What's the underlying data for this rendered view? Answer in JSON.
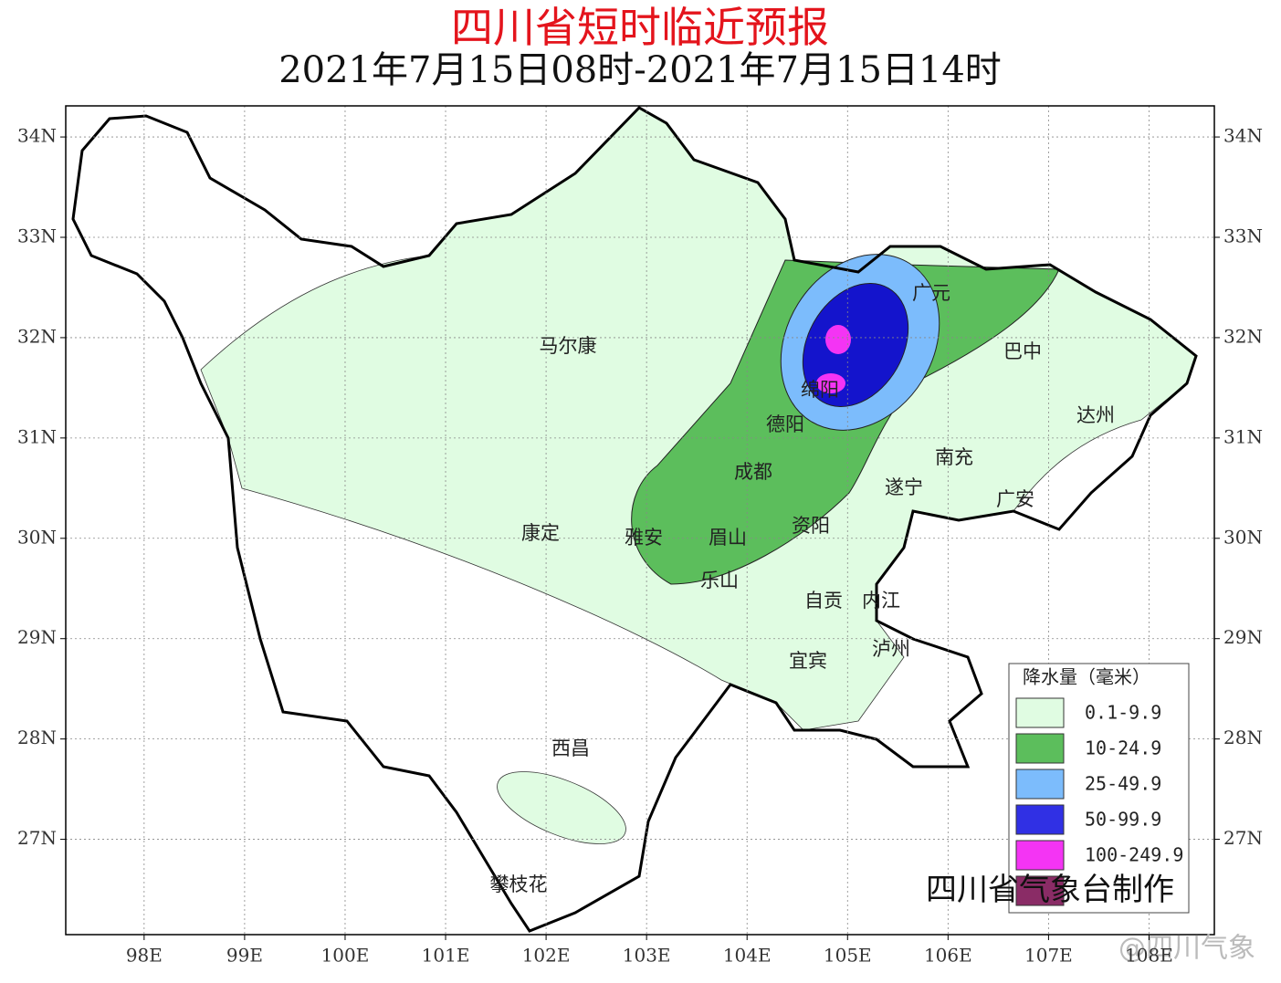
{
  "title": "四川省短时临近预报",
  "subtitle": "2021年7月15日08时-2021年7月15日14时",
  "map": {
    "lonlim": [
      97.22,
      108.65
    ],
    "latlim": [
      26.05,
      34.31
    ],
    "lonticks": [
      {
        "value": 98,
        "label": "98E"
      },
      {
        "value": 99,
        "label": "99E"
      },
      {
        "value": 100,
        "label": "100E"
      },
      {
        "value": 101,
        "label": "101E"
      },
      {
        "value": 102,
        "label": "102E"
      },
      {
        "value": 103,
        "label": "103E"
      },
      {
        "value": 104,
        "label": "104E"
      },
      {
        "value": 105,
        "label": "105E"
      },
      {
        "value": 106,
        "label": "106E"
      },
      {
        "value": 107,
        "label": "107E"
      },
      {
        "value": 108,
        "label": "108E"
      }
    ],
    "latticks": [
      {
        "value": 27,
        "label": "27N"
      },
      {
        "value": 28,
        "label": "28N"
      },
      {
        "value": 29,
        "label": "29N"
      },
      {
        "value": 30,
        "label": "30N"
      },
      {
        "value": 31,
        "label": "31N"
      },
      {
        "value": 32,
        "label": "32N"
      },
      {
        "value": 33,
        "label": "33N"
      },
      {
        "value": 34,
        "label": "34N"
      }
    ],
    "cities": [
      "马尔康",
      "广元",
      "巴中",
      "绵阳",
      "德阳",
      "达州",
      "南充",
      "成都",
      "遂宁",
      "广安",
      "康定",
      "雅安",
      "眉山",
      "资阳",
      "乐山",
      "自贡",
      "内江",
      "泸州",
      "宜宾",
      "西昌",
      "攀枝花"
    ]
  },
  "legend": {
    "title": "降水量（毫米）",
    "entries": [
      {
        "label": "0.1-9.9",
        "color": "#e0fce2"
      },
      {
        "label": "10-24.9",
        "color": "#5cbe5c"
      },
      {
        "label": "25-49.9",
        "color": "#7cbcfc"
      },
      {
        "label": "50-99.9",
        "color": "#3030e4"
      },
      {
        "label": "100-249.9",
        "color": "#f434f4"
      },
      {
        "color": "#8a2c66"
      }
    ]
  },
  "credit": "四川省气象台制作",
  "watermark": "@四川气象"
}
